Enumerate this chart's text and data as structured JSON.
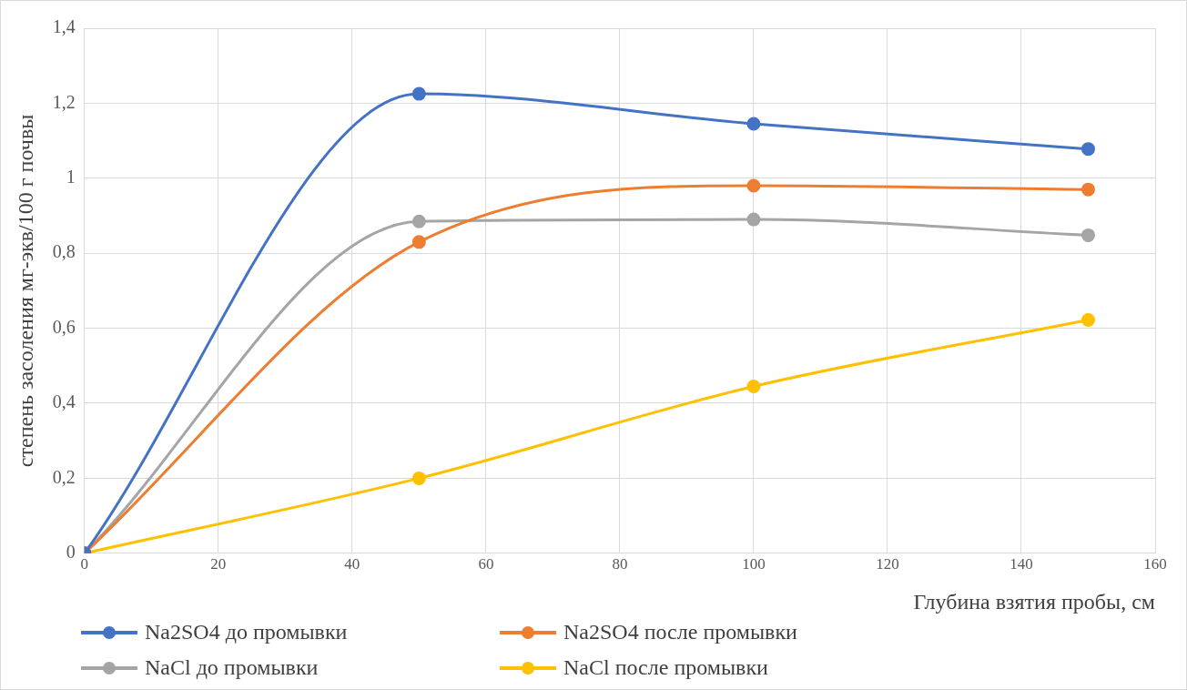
{
  "chart_data": {
    "type": "line",
    "xlabel": "Глубина взятия пробы, см",
    "ylabel": "степень засоления мг-экв/100 г почвы",
    "x": [
      0,
      50,
      100,
      150
    ],
    "series": [
      {
        "name": "Na2SO4 до промывки",
        "color": "#4472c4",
        "values": [
          0,
          1.225,
          1.145,
          1.078
        ]
      },
      {
        "name": "Na2SO4 после промывки",
        "color": "#ed7d31",
        "values": [
          0,
          0.83,
          0.98,
          0.97
        ]
      },
      {
        "name": "NaCl до промывки",
        "color": "#a5a5a5",
        "values": [
          0,
          0.885,
          0.89,
          0.848
        ]
      },
      {
        "name": "NaCl после промывки",
        "color": "#ffc000",
        "values": [
          0,
          0.2,
          0.445,
          0.622
        ]
      }
    ],
    "xlim": [
      0,
      160
    ],
    "xticks": [
      0,
      20,
      40,
      60,
      80,
      100,
      120,
      140,
      160
    ],
    "ylim": [
      0,
      1.4
    ],
    "yticks": [
      0,
      {
        "value": 0.2,
        "label": "0,2"
      },
      {
        "value": 0.4,
        "label": "0,4"
      },
      {
        "value": 0.6,
        "label": "0,6"
      },
      {
        "value": 0.8,
        "label": "0,8"
      },
      1,
      {
        "value": 1.2,
        "label": "1,2"
      },
      {
        "value": 1.4,
        "label": "1,4"
      }
    ],
    "grid": true,
    "legend": "bottom",
    "marker": "circle",
    "line_style": "solid"
  }
}
